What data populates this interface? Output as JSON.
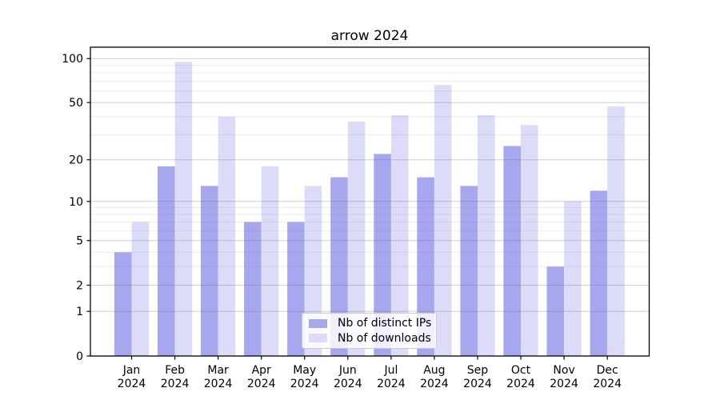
{
  "chart_data": {
    "type": "bar",
    "title": "arrow 2024",
    "categories": [
      "Jan",
      "Feb",
      "Mar",
      "Apr",
      "May",
      "Jun",
      "Jul",
      "Aug",
      "Sep",
      "Oct",
      "Nov",
      "Dec"
    ],
    "category_year": "2024",
    "series": [
      {
        "name": "Nb of distinct IPs",
        "color": "#a7a7f0",
        "values": [
          4,
          18,
          13,
          7,
          7,
          15,
          22,
          15,
          13,
          25,
          3,
          12
        ]
      },
      {
        "name": "Nb of downloads",
        "color": "#dcdcf8",
        "values": [
          7,
          95,
          40,
          18,
          13,
          37,
          41,
          66,
          41,
          35,
          10,
          47
        ]
      }
    ],
    "y_axis": {
      "scale": "log1p",
      "ticks": [
        0,
        1,
        2,
        5,
        10,
        20,
        50,
        100
      ],
      "minor_gridlines": [
        3,
        4,
        6,
        7,
        8,
        9,
        30,
        40,
        60,
        70,
        80,
        90
      ],
      "range": [
        0,
        110
      ]
    },
    "grid": "both",
    "legend_position": "lower center"
  },
  "colors": {
    "spine": "#000000",
    "grid_major": "rgba(110,110,110,0.33)",
    "grid_minor": "rgba(110,110,110,0.13)",
    "text": "#000000"
  }
}
